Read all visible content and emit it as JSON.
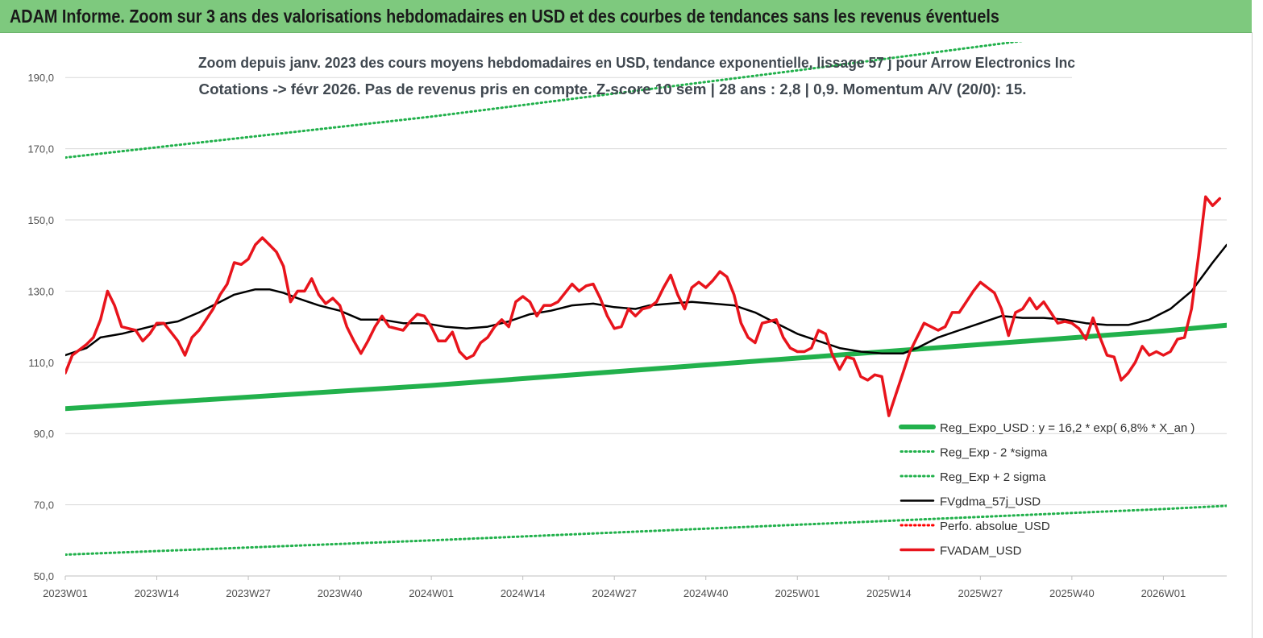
{
  "header": {
    "banner_title": "ADAM Informe. Zoom sur 3 ans des valorisations hebdomadaires en USD et des courbes de tendances sans les revenus éventuels"
  },
  "chart_data": {
    "type": "line",
    "title": "Zoom depuis janv. 2023 des cours moyens hebdomadaires en USD, tendance exponentielle, lissage 57 j pour Arrow Electronics Inc",
    "subtitle": "Cotations -> févr 2026.  Pas de revenus pris en compte. Z-score 10 sem  | 28 ans : 2,8 | 0,9. Momentum A/V (20/0): 15.",
    "ylim": [
      50,
      200
    ],
    "y_ticks": [
      "50,0",
      "70,0",
      "90,0",
      "110,0",
      "130,0",
      "150,0",
      "170,0",
      "190,0"
    ],
    "y_tick_values": [
      50,
      70,
      90,
      110,
      130,
      150,
      170,
      190
    ],
    "x_ticks": [
      "2023W01",
      "2023W14",
      "2023W27",
      "2023W40",
      "2024W01",
      "2024W14",
      "2024W27",
      "2024W40",
      "2025W01",
      "2025W14",
      "2025W27",
      "2025W40",
      "2026W01"
    ],
    "x_tick_weeks": [
      0,
      13,
      26,
      39,
      52,
      65,
      78,
      91,
      104,
      117,
      130,
      143,
      156
    ],
    "x_range_weeks": [
      0,
      165
    ],
    "grid": "horizontal",
    "legend_position": "bottom-right",
    "series": [
      {
        "name": "Reg_Expo_USD : y = 16,2 * exp( 6,8% *  X_an )",
        "color": "#22b14c",
        "style": "solid-thick",
        "points": [
          [
            0,
            97.0
          ],
          [
            52,
            103.5
          ],
          [
            104,
            111.2
          ],
          [
            156,
            118.8
          ],
          [
            165,
            120.4
          ]
        ]
      },
      {
        "name": "Reg_Exp - 2 *sigma",
        "color": "#22b14c",
        "style": "dotted",
        "points": [
          [
            0,
            56.0
          ],
          [
            52,
            60.0
          ],
          [
            104,
            64.4
          ],
          [
            156,
            68.8
          ],
          [
            165,
            69.7
          ]
        ]
      },
      {
        "name": "Reg_Exp + 2 sigma",
        "color": "#22b14c",
        "style": "dotted",
        "points": [
          [
            0,
            167.5
          ],
          [
            52,
            179.0
          ],
          [
            104,
            192.0
          ],
          [
            156,
            205.5
          ],
          [
            165,
            208.0
          ]
        ]
      },
      {
        "name": "FVgdma_57j_USD",
        "color": "#000000",
        "style": "solid",
        "points": [
          [
            0,
            112
          ],
          [
            3,
            114
          ],
          [
            5,
            117
          ],
          [
            8,
            118
          ],
          [
            11,
            119.5
          ],
          [
            13,
            120.5
          ],
          [
            16,
            121.5
          ],
          [
            19,
            124
          ],
          [
            22,
            127
          ],
          [
            24,
            129
          ],
          [
            27,
            130.5
          ],
          [
            29,
            130.5
          ],
          [
            31,
            129.5
          ],
          [
            33,
            128
          ],
          [
            36,
            126
          ],
          [
            39,
            124.5
          ],
          [
            42,
            122
          ],
          [
            45,
            122
          ],
          [
            48,
            121
          ],
          [
            51,
            121
          ],
          [
            54,
            120
          ],
          [
            57,
            119.5
          ],
          [
            60,
            120
          ],
          [
            63,
            121.5
          ],
          [
            66,
            123.5
          ],
          [
            69,
            124.5
          ],
          [
            72,
            126
          ],
          [
            75,
            126.5
          ],
          [
            78,
            125.5
          ],
          [
            81,
            125
          ],
          [
            83,
            126
          ],
          [
            86,
            126.5
          ],
          [
            89,
            127
          ],
          [
            92,
            126.5
          ],
          [
            95,
            126
          ],
          [
            98,
            124
          ],
          [
            101,
            121
          ],
          [
            104,
            118
          ],
          [
            107,
            116
          ],
          [
            110,
            114
          ],
          [
            113,
            113
          ],
          [
            116,
            112.5
          ],
          [
            119,
            112.5
          ],
          [
            121,
            114
          ],
          [
            124,
            117
          ],
          [
            127,
            119
          ],
          [
            130,
            121
          ],
          [
            133,
            123
          ],
          [
            136,
            122.5
          ],
          [
            139,
            122.5
          ],
          [
            142,
            122
          ],
          [
            145,
            121
          ],
          [
            148,
            120.5
          ],
          [
            151,
            120.5
          ],
          [
            154,
            122
          ],
          [
            157,
            125
          ],
          [
            160,
            130
          ],
          [
            163,
            138
          ],
          [
            165,
            143
          ]
        ]
      },
      {
        "name": "Perfo. absolue_USD",
        "color": "#ff0000",
        "style": "dotted",
        "points": []
      },
      {
        "name": "FVADAM_USD",
        "color": "#e8141c",
        "style": "solid-thick",
        "points": [
          [
            0,
            107
          ],
          [
            1,
            112
          ],
          [
            3,
            115
          ],
          [
            4,
            117
          ],
          [
            5,
            122
          ],
          [
            6,
            130
          ],
          [
            7,
            126
          ],
          [
            8,
            120
          ],
          [
            9,
            119.5
          ],
          [
            10,
            119
          ],
          [
            11,
            116
          ],
          [
            12,
            118
          ],
          [
            13,
            121
          ],
          [
            14,
            121
          ],
          [
            15,
            118.5
          ],
          [
            16,
            116
          ],
          [
            17,
            112
          ],
          [
            18,
            117
          ],
          [
            19,
            119
          ],
          [
            20,
            122
          ],
          [
            21,
            125
          ],
          [
            22,
            129
          ],
          [
            23,
            132
          ],
          [
            24,
            138
          ],
          [
            25,
            137.5
          ],
          [
            26,
            139
          ],
          [
            27,
            143
          ],
          [
            28,
            145
          ],
          [
            29,
            143
          ],
          [
            30,
            141
          ],
          [
            31,
            137
          ],
          [
            32,
            127
          ],
          [
            33,
            130
          ],
          [
            34,
            130
          ],
          [
            35,
            133.5
          ],
          [
            36,
            129
          ],
          [
            37,
            126.5
          ],
          [
            38,
            128
          ],
          [
            39,
            126
          ],
          [
            40,
            120
          ],
          [
            41,
            116
          ],
          [
            42,
            112.5
          ],
          [
            43,
            116
          ],
          [
            44,
            120
          ],
          [
            45,
            123
          ],
          [
            46,
            120
          ],
          [
            47,
            119.5
          ],
          [
            48,
            119
          ],
          [
            49,
            121.5
          ],
          [
            50,
            123.5
          ],
          [
            51,
            123
          ],
          [
            52,
            120
          ],
          [
            53,
            116
          ],
          [
            54,
            116
          ],
          [
            55,
            118.5
          ],
          [
            56,
            113
          ],
          [
            57,
            111
          ],
          [
            58,
            112
          ],
          [
            59,
            115.5
          ],
          [
            60,
            117
          ],
          [
            61,
            120
          ],
          [
            62,
            122
          ],
          [
            63,
            120
          ],
          [
            64,
            127
          ],
          [
            65,
            128.5
          ],
          [
            66,
            127
          ],
          [
            67,
            123
          ],
          [
            68,
            126
          ],
          [
            69,
            126
          ],
          [
            70,
            127
          ],
          [
            71,
            129.5
          ],
          [
            72,
            132
          ],
          [
            73,
            130
          ],
          [
            74,
            131.5
          ],
          [
            75,
            132
          ],
          [
            76,
            128
          ],
          [
            77,
            123
          ],
          [
            78,
            119.5
          ],
          [
            79,
            120
          ],
          [
            80,
            125
          ],
          [
            81,
            123
          ],
          [
            82,
            125
          ],
          [
            83,
            125.5
          ],
          [
            84,
            127
          ],
          [
            85,
            131
          ],
          [
            86,
            134.5
          ],
          [
            87,
            129
          ],
          [
            88,
            125
          ],
          [
            89,
            131
          ],
          [
            90,
            132.5
          ],
          [
            91,
            131
          ],
          [
            92,
            133
          ],
          [
            93,
            135.5
          ],
          [
            94,
            134
          ],
          [
            95,
            129
          ],
          [
            96,
            121
          ],
          [
            97,
            117
          ],
          [
            98,
            115.5
          ],
          [
            99,
            121
          ],
          [
            100,
            121.5
          ],
          [
            101,
            122
          ],
          [
            102,
            117
          ],
          [
            103,
            114
          ],
          [
            104,
            113
          ],
          [
            105,
            113
          ],
          [
            106,
            114
          ],
          [
            107,
            119
          ],
          [
            108,
            118
          ],
          [
            109,
            112
          ],
          [
            110,
            108
          ],
          [
            111,
            111.5
          ],
          [
            112,
            111
          ],
          [
            113,
            106
          ],
          [
            114,
            105
          ],
          [
            115,
            106.5
          ],
          [
            116,
            106
          ],
          [
            117,
            95
          ],
          [
            118,
            101
          ],
          [
            119,
            107
          ],
          [
            120,
            113
          ],
          [
            121,
            117
          ],
          [
            122,
            121
          ],
          [
            123,
            120
          ],
          [
            124,
            119
          ],
          [
            125,
            120
          ],
          [
            126,
            124
          ],
          [
            127,
            124
          ],
          [
            128,
            127
          ],
          [
            129,
            130
          ],
          [
            130,
            132.5
          ],
          [
            131,
            131
          ],
          [
            132,
            129.5
          ],
          [
            133,
            125
          ],
          [
            134,
            117.5
          ],
          [
            135,
            124
          ],
          [
            136,
            125
          ],
          [
            137,
            128
          ],
          [
            138,
            125
          ],
          [
            139,
            127
          ],
          [
            140,
            124
          ],
          [
            141,
            121
          ],
          [
            142,
            121.5
          ],
          [
            143,
            121
          ],
          [
            144,
            119.5
          ],
          [
            145,
            116.5
          ],
          [
            146,
            122.5
          ],
          [
            147,
            117
          ],
          [
            148,
            112
          ],
          [
            149,
            111.5
          ],
          [
            150,
            105
          ],
          [
            151,
            107
          ],
          [
            152,
            110
          ],
          [
            153,
            114.5
          ],
          [
            154,
            112
          ],
          [
            155,
            113
          ],
          [
            156,
            112
          ],
          [
            157,
            113
          ],
          [
            158,
            116.5
          ],
          [
            159,
            117
          ],
          [
            160,
            125
          ],
          [
            161,
            140
          ],
          [
            162,
            156.5
          ],
          [
            163,
            154
          ],
          [
            164,
            156
          ]
        ]
      }
    ]
  }
}
